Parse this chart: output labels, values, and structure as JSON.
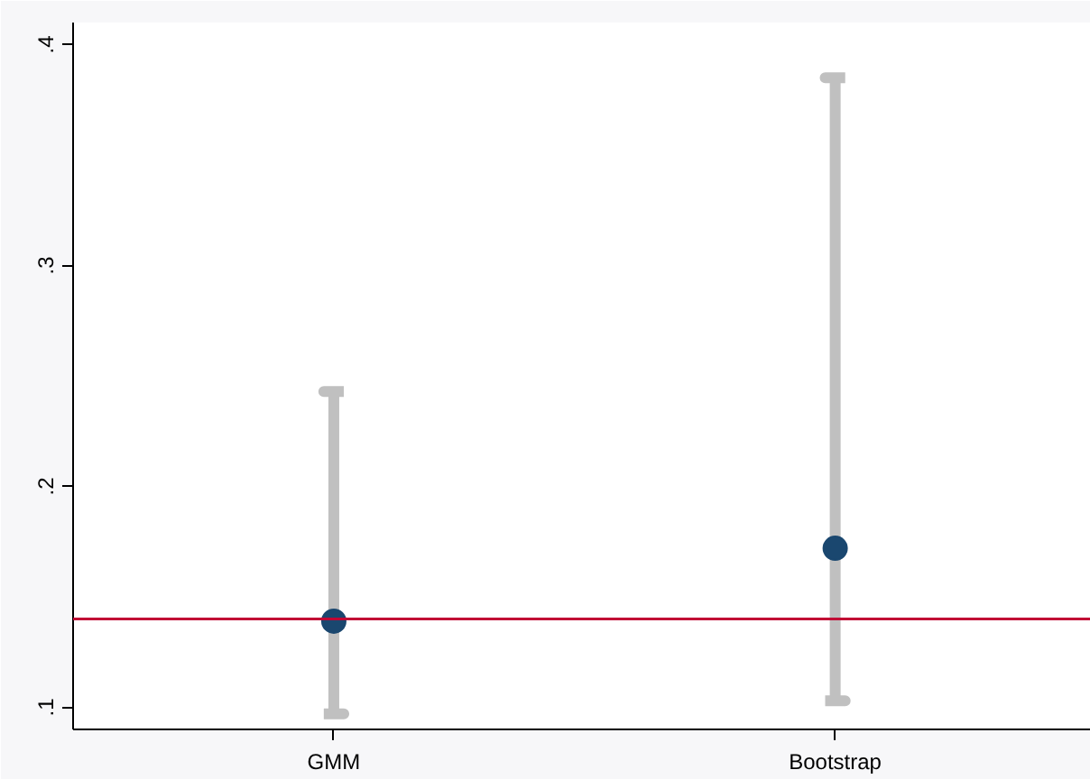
{
  "chart_data": {
    "type": "scatter",
    "categories": [
      "GMM",
      "Bootstrap"
    ],
    "series": [
      {
        "color": "#1a476f",
        "values": [
          0.139,
          0.172
        ],
        "errors": [
          [
            0.097,
            0.243
          ],
          [
            0.103,
            0.385
          ]
        ]
      }
    ],
    "ylim": [
      0.09,
      0.41
    ],
    "yticks": [
      {
        "value": 0.1,
        "label": ".1"
      },
      {
        "value": 0.2,
        "label": ".2"
      },
      {
        "value": 0.3,
        "label": ".3"
      },
      {
        "value": 0.4,
        "label": ".4"
      }
    ],
    "ref_lines": [
      {
        "axis": "y",
        "value": 0.14,
        "color": "#c10534"
      }
    ],
    "marker": "circle"
  }
}
